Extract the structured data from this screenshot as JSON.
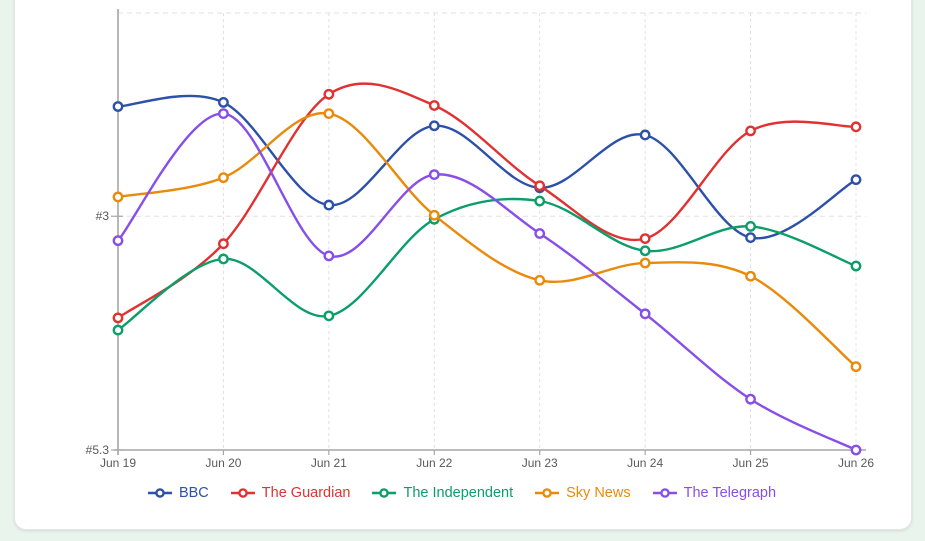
{
  "page": {
    "background_color": "#e9f4ed",
    "card_color": "#ffffff"
  },
  "chart_data": {
    "type": "line",
    "title": "",
    "xlabel": "",
    "ylabel": "",
    "categories": [
      "Jun 19",
      "Jun 20",
      "Jun 21",
      "Jun 22",
      "Jun 23",
      "Jun 24",
      "Jun 25",
      "Jun 26"
    ],
    "series": [
      {
        "name": "BBC",
        "color": "#2d50a8",
        "values": [
          1.92,
          1.88,
          2.89,
          2.11,
          2.72,
          2.2,
          3.21,
          2.64
        ]
      },
      {
        "name": "The Guardian",
        "color": "#e03231",
        "values": [
          4.0,
          3.27,
          1.8,
          1.91,
          2.7,
          3.22,
          2.16,
          2.12
        ]
      },
      {
        "name": "The Independent",
        "color": "#0b9e6a",
        "values": [
          4.12,
          3.42,
          3.98,
          3.03,
          2.85,
          3.34,
          3.1,
          3.49
        ]
      },
      {
        "name": "Sky News",
        "color": "#ea8a0a",
        "values": [
          2.81,
          2.62,
          1.99,
          2.99,
          3.63,
          3.46,
          3.59,
          4.48
        ]
      },
      {
        "name": "The Telegraph",
        "color": "#874ee8",
        "values": [
          3.24,
          1.99,
          3.39,
          2.59,
          3.17,
          3.96,
          4.8,
          5.3
        ]
      }
    ],
    "ylim": [
      1,
      5.3
    ],
    "y_axis_direction": "inverted (rank #1 at top, larger rank numbers downward)",
    "y_ticks": [
      {
        "value": 3,
        "label": "#3"
      },
      {
        "value": 5.3,
        "label": "#5.3"
      }
    ],
    "y_gridlines": [
      1,
      3
    ],
    "grid": "dashed",
    "marker_style": "hollow circle",
    "legend_position": "bottom"
  },
  "colors": {
    "gridline": "#e0e0e0",
    "axis": "#a6a6a6",
    "tick_text": "#595959"
  }
}
